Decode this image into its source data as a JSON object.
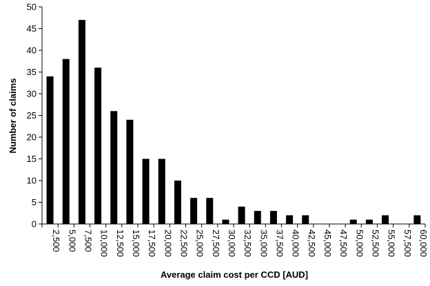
{
  "chart_data": {
    "type": "bar",
    "title": "",
    "xlabel": "Average claim cost per CCD [AUD]",
    "ylabel": "Number of claims",
    "ylim": [
      0,
      50
    ],
    "yticks": [
      "0",
      "5",
      "10",
      "15",
      "20",
      "25",
      "30",
      "35",
      "40",
      "45",
      "50"
    ],
    "grid": false,
    "legend": "none",
    "bar_color": "#000000",
    "categories": [
      "2,500",
      "5,000",
      "7,500",
      "10,000",
      "12,500",
      "15,000",
      "17,500",
      "20,000",
      "22,500",
      "25,000",
      "27,500",
      "30,000",
      "32,500",
      "35,000",
      "37,500",
      "40,000",
      "42,500",
      "45,000",
      "47,500",
      "50,000",
      "52,500",
      "55,000",
      "57,500",
      "60,000"
    ],
    "values": [
      34,
      38,
      47,
      36,
      26,
      24,
      15,
      15,
      10,
      6,
      6,
      1,
      4,
      3,
      3,
      2,
      2,
      0,
      0,
      1,
      1,
      2,
      0,
      2
    ]
  }
}
